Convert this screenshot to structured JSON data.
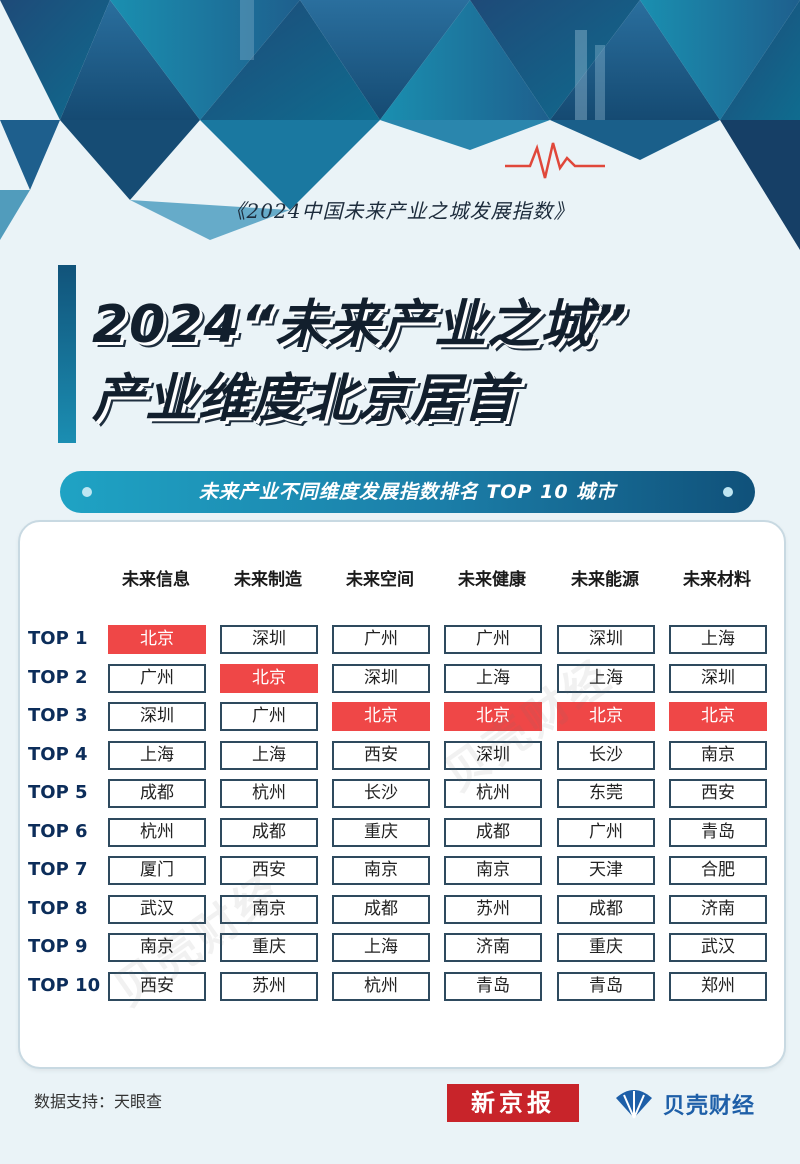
{
  "header": {
    "subtitle": "《2024中国未来产业之城发展指数》"
  },
  "title": {
    "line1": "2024“未来产业之城”",
    "line2": "产业维度北京居首"
  },
  "section_title": "未来产业不同维度发展指数排名 TOP 10 城市",
  "table": {
    "columns": [
      "未来信息",
      "未来制造",
      "未来空间",
      "未来健康",
      "未来能源",
      "未来材料"
    ],
    "rows": [
      {
        "rank": "TOP 1",
        "cities": [
          "北京",
          "深圳",
          "广州",
          "广州",
          "深圳",
          "上海"
        ]
      },
      {
        "rank": "TOP 2",
        "cities": [
          "广州",
          "北京",
          "深圳",
          "上海",
          "上海",
          "深圳"
        ]
      },
      {
        "rank": "TOP 3",
        "cities": [
          "深圳",
          "广州",
          "北京",
          "北京",
          "北京",
          "北京"
        ]
      },
      {
        "rank": "TOP 4",
        "cities": [
          "上海",
          "上海",
          "西安",
          "深圳",
          "长沙",
          "南京"
        ]
      },
      {
        "rank": "TOP 5",
        "cities": [
          "成都",
          "杭州",
          "长沙",
          "杭州",
          "东莞",
          "西安"
        ]
      },
      {
        "rank": "TOP 6",
        "cities": [
          "杭州",
          "成都",
          "重庆",
          "成都",
          "广州",
          "青岛"
        ]
      },
      {
        "rank": "TOP 7",
        "cities": [
          "厦门",
          "西安",
          "南京",
          "南京",
          "天津",
          "合肥"
        ]
      },
      {
        "rank": "TOP 8",
        "cities": [
          "武汉",
          "南京",
          "成都",
          "苏州",
          "成都",
          "济南"
        ]
      },
      {
        "rank": "TOP 9",
        "cities": [
          "南京",
          "重庆",
          "上海",
          "济南",
          "重庆",
          "武汉"
        ]
      },
      {
        "rank": "TOP 10",
        "cities": [
          "西安",
          "苏州",
          "杭州",
          "青岛",
          "青岛",
          "郑州"
        ]
      }
    ],
    "highlight_city": "北京",
    "highlight_color": "#ef4747"
  },
  "watermark": "贝壳财经",
  "footer": {
    "source": "数据支持：天眼查",
    "logo_xjb": "新京报",
    "logo_bk": "贝壳财经"
  },
  "colors": {
    "accent": "#1b7ea8",
    "dark_navy": "#10517a",
    "brand_red": "#c8242a"
  }
}
